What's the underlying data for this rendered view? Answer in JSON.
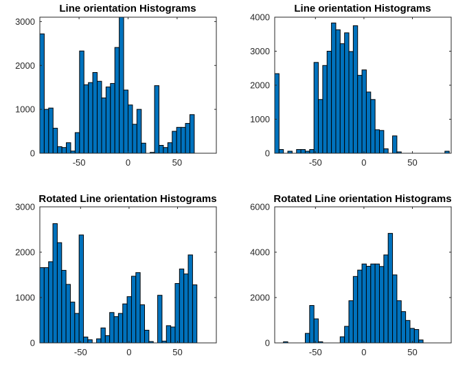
{
  "figure": {
    "background": "#ffffff",
    "bar_color": "#0072bd",
    "edge_color": "#000000"
  },
  "chart_data": [
    {
      "type": "bar",
      "title": "Line orientation Histograms",
      "xlabel": "",
      "ylabel": "",
      "xlim": [
        -90,
        90
      ],
      "ylim": [
        0,
        3100
      ],
      "xticks": [
        -50,
        0,
        50
      ],
      "yticks": [
        0,
        1000,
        2000,
        3000
      ],
      "bin_width": 4.5,
      "bin_centers": [
        -87.75,
        -83.25,
        -78.75,
        -74.25,
        -69.75,
        -65.25,
        -60.75,
        -56.25,
        -51.75,
        -47.25,
        -42.75,
        -38.25,
        -33.75,
        -29.25,
        -24.75,
        -20.25,
        -15.75,
        -11.25,
        -6.75,
        -2.25,
        2.25,
        6.75,
        11.25,
        15.75,
        20.25,
        24.75,
        29.25,
        33.75,
        38.25,
        42.75,
        47.25,
        51.75,
        56.25,
        60.75,
        65.25,
        69.75,
        74.25,
        78.75,
        83.25,
        87.75
      ],
      "values": [
        2720,
        1000,
        1030,
        570,
        150,
        130,
        240,
        50,
        470,
        2330,
        1560,
        1610,
        1840,
        1640,
        1260,
        1510,
        1590,
        2410,
        3100,
        1440,
        1100,
        660,
        1000,
        230,
        0,
        20,
        1540,
        180,
        130,
        240,
        500,
        590,
        590,
        680,
        880,
        0,
        0,
        0,
        0,
        0
      ]
    },
    {
      "type": "bar",
      "title": "Line orientation Histograms",
      "xlabel": "",
      "ylabel": "",
      "xlim": [
        -92,
        90
      ],
      "ylim": [
        0,
        4000
      ],
      "xticks": [
        -50,
        0,
        50
      ],
      "yticks": [
        0,
        1000,
        2000,
        3000,
        4000
      ],
      "bin_width": 4.5,
      "bin_centers": [
        -89.75,
        -85.25,
        -80.75,
        -76.25,
        -71.75,
        -67.25,
        -62.75,
        -58.25,
        -53.75,
        -49.25,
        -44.75,
        -40.25,
        -35.75,
        -31.25,
        -26.75,
        -22.25,
        -17.75,
        -13.25,
        -8.75,
        -4.25,
        0.25,
        4.75,
        9.25,
        13.75,
        18.25,
        22.75,
        27.25,
        31.75,
        36.25,
        40.75,
        45.25,
        49.75,
        54.25,
        58.75,
        63.25,
        67.75,
        72.25,
        76.75,
        81.25,
        85.75
      ],
      "values": [
        2340,
        110,
        0,
        60,
        0,
        110,
        110,
        60,
        110,
        2670,
        1580,
        2580,
        3000,
        3830,
        3630,
        3220,
        3540,
        2990,
        3750,
        2290,
        2450,
        1800,
        1580,
        690,
        670,
        130,
        0,
        510,
        40,
        0,
        0,
        0,
        0,
        0,
        0,
        0,
        0,
        0,
        0,
        60
      ]
    },
    {
      "type": "bar",
      "title": "Rotated Line orientation Histograms",
      "xlabel": "",
      "ylabel": "",
      "xlim": [
        -92,
        90
      ],
      "ylim": [
        0,
        3000
      ],
      "xticks": [
        -50,
        0,
        50
      ],
      "yticks": [
        0,
        1000,
        2000,
        3000
      ],
      "bin_width": 4.5,
      "bin_centers": [
        -89.75,
        -85.25,
        -80.75,
        -76.25,
        -71.75,
        -67.25,
        -62.75,
        -58.25,
        -53.75,
        -49.25,
        -44.75,
        -40.25,
        -35.75,
        -31.25,
        -26.75,
        -22.25,
        -17.75,
        -13.25,
        -8.75,
        -4.25,
        0.25,
        4.75,
        9.25,
        13.75,
        18.25,
        22.75,
        27.25,
        31.75,
        36.25,
        40.75,
        45.25,
        49.75,
        54.25,
        58.75,
        63.25,
        67.75,
        72.25,
        76.75,
        81.25,
        85.75
      ],
      "values": [
        1660,
        1660,
        1790,
        2630,
        2210,
        1600,
        1290,
        900,
        650,
        2380,
        130,
        70,
        0,
        90,
        330,
        160,
        670,
        580,
        650,
        860,
        1020,
        1470,
        1550,
        840,
        280,
        30,
        0,
        1050,
        40,
        380,
        350,
        1310,
        1630,
        1520,
        1940,
        1280,
        0,
        0,
        0,
        0
      ]
    },
    {
      "type": "bar",
      "title": "Rotated Line orientation Histograms",
      "xlabel": "",
      "ylabel": "",
      "xlim": [
        -92,
        90
      ],
      "ylim": [
        0,
        6000
      ],
      "xticks": [
        -50,
        0,
        50
      ],
      "yticks": [
        0,
        2000,
        4000,
        6000
      ],
      "bin_width": 4.5,
      "bin_centers": [
        -89.75,
        -85.25,
        -80.75,
        -76.25,
        -71.75,
        -67.25,
        -62.75,
        -58.25,
        -53.75,
        -49.25,
        -44.75,
        -40.25,
        -35.75,
        -31.25,
        -26.75,
        -22.25,
        -17.75,
        -13.25,
        -8.75,
        -4.25,
        0.25,
        4.75,
        9.25,
        13.75,
        18.25,
        22.75,
        27.25,
        31.75,
        36.25,
        40.75,
        45.25,
        49.75,
        54.25,
        58.75,
        63.25,
        67.75,
        72.25,
        76.75,
        81.25,
        85.75
      ],
      "values": [
        0,
        0,
        50,
        0,
        0,
        0,
        0,
        420,
        1650,
        1060,
        50,
        0,
        0,
        0,
        0,
        270,
        730,
        1860,
        2930,
        3210,
        3480,
        3380,
        3480,
        3480,
        3370,
        3880,
        4830,
        3000,
        1860,
        1380,
        990,
        640,
        590,
        130,
        0,
        0,
        0,
        0,
        0,
        0
      ]
    }
  ]
}
